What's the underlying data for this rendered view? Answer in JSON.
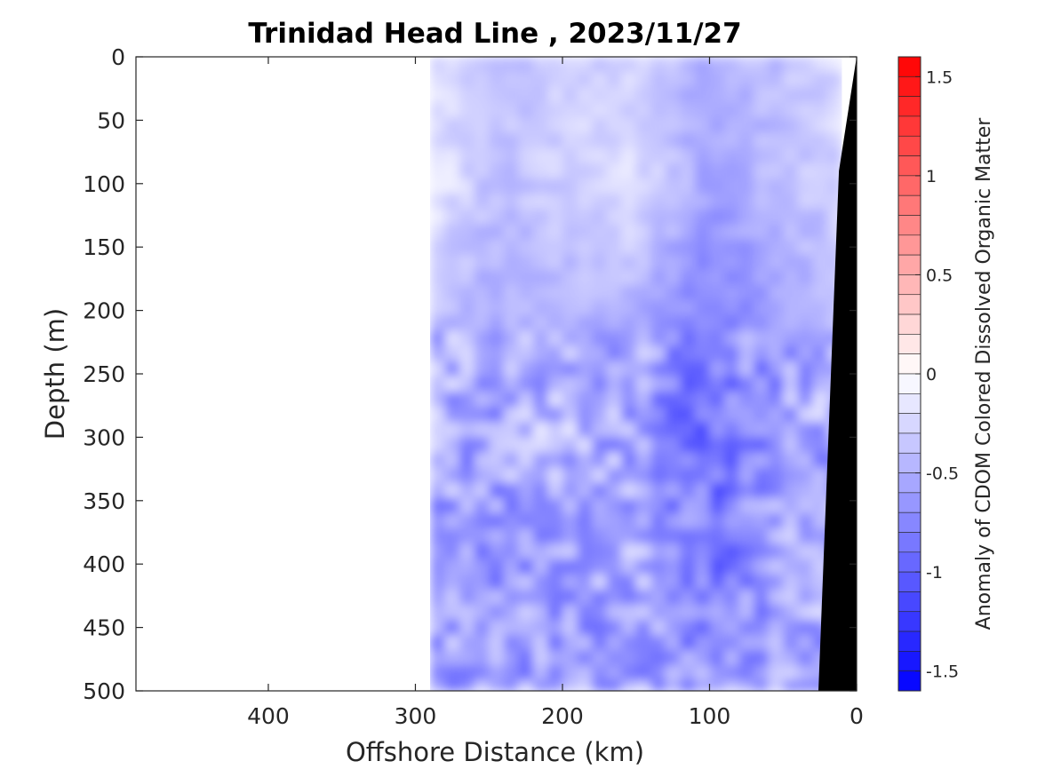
{
  "chart_data": {
    "type": "heatmap",
    "title": "Trinidad Head Line , 2023/11/27",
    "xlabel": "Offshore Distance (km)",
    "ylabel": "Depth (m)",
    "colorbar_label": "Anomaly of CDOM Colored Dissolved Organic Matter",
    "x_reversed": true,
    "y_reversed": true,
    "xlim": [
      0,
      490
    ],
    "ylim": [
      0,
      500
    ],
    "x_ticks": [
      "400",
      "300",
      "200",
      "100",
      "0"
    ],
    "y_ticks": [
      "0",
      "50",
      "100",
      "150",
      "200",
      "250",
      "300",
      "350",
      "400",
      "450",
      "500"
    ],
    "colorbar_ticks": [
      "1.5",
      "1",
      "0.5",
      "0",
      "-0.5",
      "-1",
      "-1.5"
    ],
    "clim": [
      -1.6,
      1.6
    ],
    "data_extent_km": [
      290,
      10
    ],
    "grid": false,
    "colormap": {
      "low": "#0000ff",
      "mid": "#ffffff",
      "high": "#ff0000"
    },
    "bathymetry_color": "#000000",
    "z_samples": {
      "distance_km": [
        290,
        250,
        200,
        150,
        100,
        50,
        10
      ],
      "depth_m": [
        0,
        100,
        200,
        300,
        400,
        500
      ],
      "anomaly": [
        [
          -0.2,
          -0.4,
          -0.3,
          -0.3,
          -0.5,
          -0.4,
          -0.2
        ],
        [
          -0.1,
          -0.4,
          -0.3,
          -0.2,
          -0.6,
          -0.4,
          -0.3
        ],
        [
          -0.4,
          -0.5,
          -0.5,
          -0.5,
          -0.8,
          -0.6,
          -0.4
        ],
        [
          -0.6,
          -0.6,
          -0.4,
          -0.6,
          -0.9,
          -0.6,
          -0.5
        ],
        [
          -0.5,
          -0.7,
          -0.6,
          -0.5,
          -0.8,
          -0.6,
          -0.5
        ],
        [
          -0.6,
          -0.6,
          -0.6,
          -0.6,
          -0.7,
          -0.6,
          -0.5
        ]
      ]
    }
  }
}
